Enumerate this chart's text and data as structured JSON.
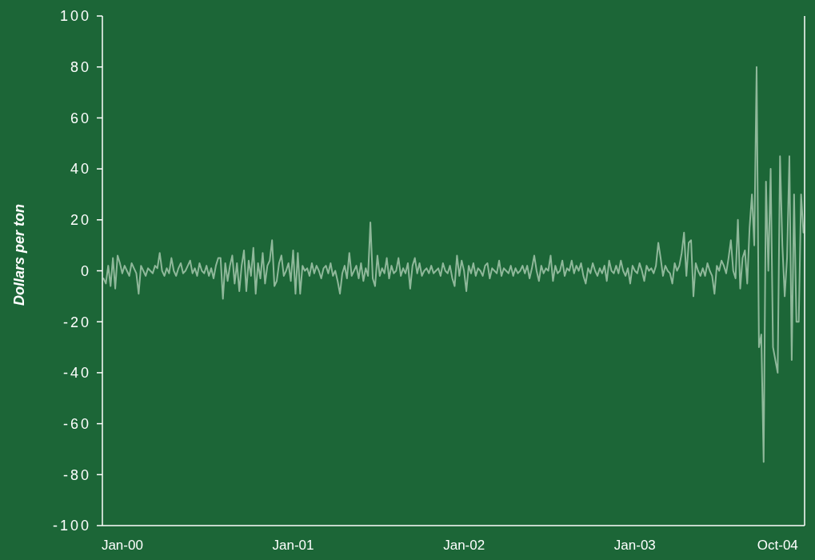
{
  "chart_data": {
    "type": "line",
    "ylabel": "Dollars per ton",
    "categories": [
      null,
      null,
      null,
      null,
      null,
      null,
      null,
      null,
      "Jan-00",
      null,
      null,
      null,
      null,
      null,
      null,
      null,
      null,
      null,
      null,
      null,
      null,
      null,
      null,
      null,
      null,
      null,
      null,
      null,
      null,
      null,
      null,
      null,
      null,
      null,
      null,
      null,
      null,
      null,
      null,
      null,
      null,
      null,
      null,
      null,
      null,
      null,
      null,
      null,
      null,
      null,
      null,
      null,
      null,
      null,
      null,
      null,
      null,
      null,
      null,
      null,
      null,
      null,
      null,
      null,
      null,
      null,
      null,
      null,
      null,
      null,
      null,
      null,
      null,
      null,
      null,
      null,
      null,
      null,
      null,
      null,
      null,
      "Jan-01",
      null,
      null,
      null,
      null,
      null,
      null,
      null,
      null,
      null,
      null,
      null,
      null,
      null,
      null,
      null,
      null,
      null,
      null,
      null,
      null,
      null,
      null,
      null,
      null,
      null,
      null,
      null,
      null,
      null,
      null,
      null,
      null,
      null,
      null,
      null,
      null,
      null,
      null,
      null,
      null,
      null,
      null,
      null,
      null,
      null,
      null,
      null,
      null,
      null,
      null,
      null,
      null,
      null,
      null,
      null,
      null,
      null,
      null,
      null,
      null,
      null,
      null,
      null,
      null,
      null,
      null,
      null,
      null,
      null,
      null,
      null,
      null,
      "Jan-02",
      null,
      null,
      null,
      null,
      null,
      null,
      null,
      null,
      null,
      null,
      null,
      null,
      null,
      null,
      null,
      null,
      null,
      null,
      null,
      null,
      null,
      null,
      null,
      null,
      null,
      null,
      null,
      null,
      null,
      null,
      null,
      null,
      null,
      null,
      null,
      null,
      null,
      null,
      null,
      null,
      null,
      null,
      null,
      null,
      null,
      null,
      null,
      null,
      null,
      null,
      null,
      null,
      null,
      null,
      null,
      null,
      null,
      null,
      null,
      null,
      null,
      null,
      null,
      null,
      null,
      null,
      null,
      null,
      null,
      null,
      null,
      null,
      "Jan-03",
      null,
      null,
      null,
      null,
      null,
      null,
      null,
      null,
      null,
      null,
      null,
      null,
      null,
      null,
      null,
      null,
      null,
      null,
      null,
      null,
      null,
      null,
      null,
      null,
      null,
      null,
      null,
      null,
      null,
      null,
      null,
      null,
      null,
      null,
      null,
      null,
      null,
      null,
      null,
      null,
      null,
      null,
      null,
      null,
      null,
      null,
      null,
      null,
      null,
      null,
      null,
      null,
      null,
      null,
      null,
      null,
      null,
      null,
      null,
      null,
      "Oct-04",
      null,
      null,
      null,
      null,
      null,
      null,
      null,
      null,
      null,
      null,
      null
    ],
    "series": [
      {
        "color": "#8fb89a",
        "values": [
          -3,
          -5,
          2,
          -6,
          5,
          -7,
          6,
          3,
          -1,
          2,
          0,
          -2,
          3,
          1,
          -1,
          -9,
          2,
          0,
          -2,
          1,
          0,
          -1,
          2,
          1,
          7,
          0,
          -2,
          1,
          -1,
          5,
          0,
          -2,
          1,
          3,
          -1,
          0,
          2,
          4,
          -1,
          1,
          -2,
          3,
          0,
          -1,
          2,
          -2,
          1,
          -3,
          2,
          5,
          5,
          -11,
          3,
          -4,
          2,
          6,
          -5,
          3,
          -8,
          2,
          8,
          -8,
          4,
          -2,
          9,
          -9,
          3,
          -3,
          7,
          -5,
          2,
          4,
          12,
          -6,
          -4,
          3,
          6,
          -2,
          0,
          3,
          -4,
          8,
          -9,
          7,
          -9,
          2,
          0,
          1,
          -2,
          3,
          -1,
          2,
          0,
          -3,
          1,
          2,
          -1,
          3,
          -2,
          0,
          -4,
          -9,
          -1,
          2,
          -3,
          7,
          -2,
          0,
          2,
          -3,
          3,
          -4,
          1,
          -2,
          19,
          -3,
          -6,
          6,
          -2,
          1,
          -1,
          5,
          -3,
          2,
          -1,
          0,
          5,
          -2,
          1,
          -1,
          3,
          -7,
          2,
          5,
          -1,
          3,
          -2,
          0,
          1,
          -1,
          2,
          -1,
          0,
          1,
          -2,
          3,
          0,
          -1,
          2,
          -3,
          -6,
          6,
          -2,
          4,
          0,
          -8,
          2,
          -1,
          3,
          -2,
          1,
          0,
          -2,
          2,
          3,
          -3,
          1,
          0,
          -1,
          4,
          -2,
          1,
          0,
          -1,
          2,
          -2,
          1,
          -1,
          0,
          2,
          -1,
          2,
          -3,
          1,
          6,
          0,
          -4,
          2,
          -1,
          1,
          0,
          6,
          -4,
          2,
          -1,
          0,
          4,
          -2,
          1,
          0,
          4,
          -1,
          2,
          0,
          3,
          -2,
          -5,
          1,
          -1,
          3,
          0,
          -2,
          1,
          -1,
          2,
          -4,
          4,
          0,
          -1,
          2,
          -1,
          4,
          0,
          -2,
          1,
          -5,
          2,
          0,
          -1,
          3,
          0,
          -4,
          2,
          0,
          1,
          -1,
          2,
          11,
          5,
          -2,
          2,
          0,
          -1,
          -5,
          3,
          0,
          2,
          7,
          15,
          -2,
          11,
          12,
          -10,
          3,
          0,
          -2,
          1,
          -2,
          3,
          0,
          -2,
          -9,
          2,
          0,
          4,
          2,
          -1,
          5,
          12,
          0,
          -3,
          20,
          -7,
          5,
          8,
          -5,
          17,
          30,
          10,
          80,
          -30,
          -25,
          -75,
          35,
          0,
          40,
          -30,
          -35,
          -40,
          45,
          10,
          -10,
          5,
          45,
          -35,
          30,
          -20,
          -20,
          30,
          15
        ]
      }
    ],
    "ylim": [
      -100,
      100
    ],
    "yticks": [
      -100,
      -80,
      -60,
      -40,
      -20,
      0,
      20,
      40,
      60,
      80,
      100
    ]
  }
}
